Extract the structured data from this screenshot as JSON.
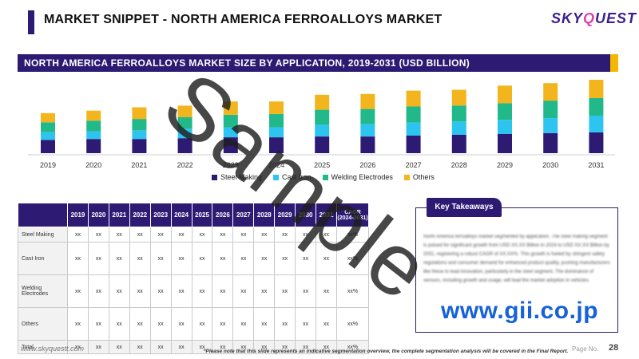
{
  "header": {
    "title": "MARKET SNIPPET - NORTH AMERICA FERROALLOYS MARKET",
    "logo_main": "SKY",
    "logo_q": "Q",
    "logo_rest": "UEST"
  },
  "chart_banner": "NORTH AMERICA FERROALLOYS MARKET SIZE BY APPLICATION, 2019-2031 (USD BILLION)",
  "chart_data": {
    "type": "bar",
    "stacked": true,
    "title": "NORTH AMERICA FERROALLOYS MARKET SIZE BY APPLICATION, 2019-2031 (USD BILLION)",
    "categories": [
      "2019",
      "2020",
      "2021",
      "2022",
      "2023",
      "2024",
      "2025",
      "2026",
      "2027",
      "2028",
      "2029",
      "2030",
      "2031"
    ],
    "series": [
      {
        "name": "Steel Making",
        "values": [
          16,
          17,
          17,
          18,
          19,
          19,
          20,
          20,
          21,
          22,
          23,
          24,
          25
        ]
      },
      {
        "name": "Cast Iron",
        "values": [
          9,
          9,
          10,
          11,
          12,
          12,
          14,
          15,
          16,
          16,
          17,
          18,
          20
        ]
      },
      {
        "name": "Welding Electrodes",
        "values": [
          12,
          13,
          14,
          14,
          15,
          16,
          18,
          18,
          19,
          19,
          20,
          21,
          21
        ]
      },
      {
        "name": "Others",
        "values": [
          11,
          12,
          14,
          14,
          16,
          15,
          18,
          18,
          19,
          19,
          21,
          21,
          22
        ]
      }
    ],
    "colors": [
      "#2d1a73",
      "#2ec4f0",
      "#21b88a",
      "#f2b51d"
    ],
    "legend": "bottom",
    "grid": false
  },
  "table": {
    "years": [
      "2019",
      "2020",
      "2021",
      "2022",
      "2023",
      "2024",
      "2025",
      "2026",
      "2027",
      "2028",
      "2029",
      "2030",
      "2031"
    ],
    "cagr_label": "CAGR (2024-2031)",
    "rows": [
      {
        "segment": "Steel Making",
        "value": "xx",
        "cagr": "xx%"
      },
      {
        "segment": "Cast Iron",
        "value": "xx",
        "cagr": "xx%"
      },
      {
        "segment": "Welding Electrodes",
        "value": "xx",
        "cagr": "xx%"
      },
      {
        "segment": "Others",
        "value": "xx",
        "cagr": "xx%"
      },
      {
        "segment": "Total",
        "value": "xx",
        "cagr": "xx%"
      }
    ]
  },
  "key_takeaways": {
    "title": "Key Takeaways",
    "text": "North America ferroalloys market segmented by application. The steel making segment is poised for significant growth from USD XX.XX Billion in 2024 to USD XX.XX Billion by 2031, registering a robust CAGR of XX.XX%. This growth is fueled by stringent safety regulations and consumer demand for enhanced product quality, pushing manufacturers like these to lead innovation, particularly in the steel segment. The dominance of sensors, including growth and usage, will lead the market adoption in vehicles."
  },
  "footer": {
    "url": "www.skyquestt.com",
    "note": "*Please note that this slide represents an indicative segmentation overview, the complete segmentation analysis will be covered in the Final Report.",
    "page_label": "Page No.",
    "page_number": "28"
  },
  "watermarks": {
    "sample": "Sample",
    "gii": "www.gii.co.jp"
  }
}
